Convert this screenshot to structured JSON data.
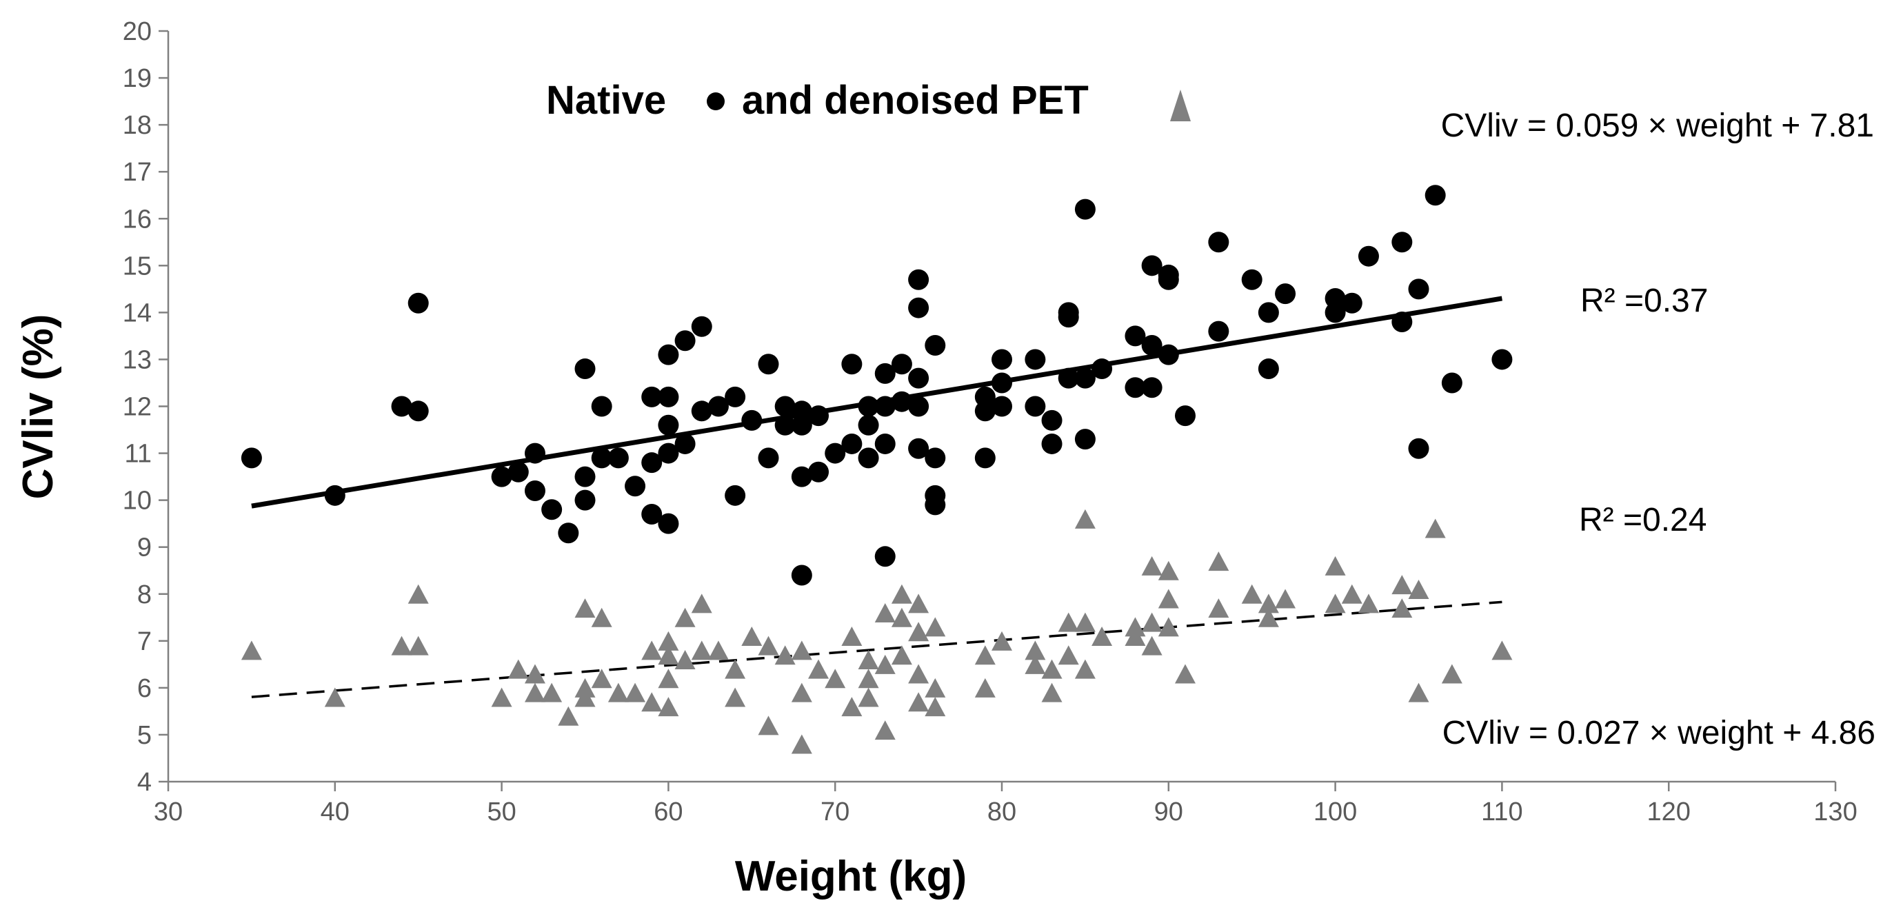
{
  "chart_data": {
    "type": "scatter",
    "title_parts": [
      "Native",
      "and denoised PET"
    ],
    "xlabel": "Weight (kg)",
    "ylabel": "CVliv (%)",
    "xlim": [
      30,
      130
    ],
    "ylim": [
      4,
      20
    ],
    "x_ticks": [
      30,
      40,
      50,
      60,
      70,
      80,
      90,
      100,
      110,
      120,
      130
    ],
    "y_ticks": [
      4,
      5,
      6,
      7,
      8,
      9,
      10,
      11,
      12,
      13,
      14,
      15,
      16,
      17,
      18,
      19,
      20
    ],
    "grid": false,
    "series": [
      {
        "name": "Native",
        "marker": "circle",
        "color": "#000000",
        "points": [
          [
            35,
            10.9
          ],
          [
            40,
            10.1
          ],
          [
            44,
            12.0
          ],
          [
            45,
            11.9
          ],
          [
            45,
            14.2
          ],
          [
            50,
            10.5
          ],
          [
            51,
            10.6
          ],
          [
            52,
            11.0
          ],
          [
            52,
            10.2
          ],
          [
            53,
            9.8
          ],
          [
            54,
            9.3
          ],
          [
            55,
            12.8
          ],
          [
            55,
            10.5
          ],
          [
            55,
            10.0
          ],
          [
            56,
            12.0
          ],
          [
            56,
            10.9
          ],
          [
            57,
            10.9
          ],
          [
            58,
            10.3
          ],
          [
            59,
            12.2
          ],
          [
            59,
            10.8
          ],
          [
            59,
            9.7
          ],
          [
            60,
            13.1
          ],
          [
            60,
            12.2
          ],
          [
            60,
            11.6
          ],
          [
            60,
            11.0
          ],
          [
            60,
            9.5
          ],
          [
            61,
            13.4
          ],
          [
            61,
            11.2
          ],
          [
            62,
            13.7
          ],
          [
            62,
            11.9
          ],
          [
            63,
            12.0
          ],
          [
            64,
            12.2
          ],
          [
            64,
            10.1
          ],
          [
            65,
            11.7
          ],
          [
            66,
            12.9
          ],
          [
            66,
            10.9
          ],
          [
            67,
            12.0
          ],
          [
            67,
            11.6
          ],
          [
            68,
            11.9
          ],
          [
            68,
            11.6
          ],
          [
            68,
            10.5
          ],
          [
            68,
            8.4
          ],
          [
            69,
            11.8
          ],
          [
            69,
            10.6
          ],
          [
            70,
            11.0
          ],
          [
            71,
            12.9
          ],
          [
            71,
            11.2
          ],
          [
            72,
            12.0
          ],
          [
            72,
            11.6
          ],
          [
            72,
            10.9
          ],
          [
            73,
            12.7
          ],
          [
            73,
            12.0
          ],
          [
            73,
            11.2
          ],
          [
            73,
            8.8
          ],
          [
            74,
            12.9
          ],
          [
            74,
            12.1
          ],
          [
            75,
            14.7
          ],
          [
            75,
            14.1
          ],
          [
            75,
            12.6
          ],
          [
            75,
            12.0
          ],
          [
            75,
            11.1
          ],
          [
            76,
            13.3
          ],
          [
            76,
            10.9
          ],
          [
            76,
            10.1
          ],
          [
            76,
            9.9
          ],
          [
            79,
            12.2
          ],
          [
            79,
            11.9
          ],
          [
            79,
            10.9
          ],
          [
            80,
            13.0
          ],
          [
            80,
            12.5
          ],
          [
            80,
            12.0
          ],
          [
            82,
            13.0
          ],
          [
            82,
            12.0
          ],
          [
            83,
            11.7
          ],
          [
            83,
            11.2
          ],
          [
            84,
            14.0
          ],
          [
            84,
            13.9
          ],
          [
            84,
            12.6
          ],
          [
            85,
            16.2
          ],
          [
            85,
            12.6
          ],
          [
            85,
            11.3
          ],
          [
            86,
            12.8
          ],
          [
            88,
            13.5
          ],
          [
            88,
            12.4
          ],
          [
            89,
            15.0
          ],
          [
            89,
            13.3
          ],
          [
            89,
            12.4
          ],
          [
            90,
            14.8
          ],
          [
            90,
            14.7
          ],
          [
            90,
            13.1
          ],
          [
            91,
            11.8
          ],
          [
            93,
            15.5
          ],
          [
            93,
            13.6
          ],
          [
            95,
            14.7
          ],
          [
            96,
            14.0
          ],
          [
            96,
            12.8
          ],
          [
            97,
            14.4
          ],
          [
            100,
            14.3
          ],
          [
            100,
            14.0
          ],
          [
            101,
            14.2
          ],
          [
            102,
            15.2
          ],
          [
            104,
            15.5
          ],
          [
            104,
            13.8
          ],
          [
            105,
            14.5
          ],
          [
            105,
            11.1
          ],
          [
            106,
            16.5
          ],
          [
            107,
            12.5
          ],
          [
            110,
            13.0
          ]
        ],
        "trendline": {
          "style": "solid",
          "x_range": [
            35,
            110
          ],
          "slope": 0.059,
          "intercept": 7.81,
          "r2": 0.37
        }
      },
      {
        "name": "Denoised PET",
        "marker": "triangle",
        "color": "#808080",
        "points": [
          [
            35,
            6.8
          ],
          [
            40,
            5.8
          ],
          [
            44,
            6.9
          ],
          [
            45,
            8.0
          ],
          [
            45,
            6.9
          ],
          [
            50,
            5.8
          ],
          [
            51,
            6.4
          ],
          [
            52,
            6.3
          ],
          [
            52,
            5.9
          ],
          [
            53,
            5.9
          ],
          [
            54,
            5.4
          ],
          [
            55,
            7.7
          ],
          [
            55,
            6.0
          ],
          [
            55,
            5.8
          ],
          [
            56,
            7.5
          ],
          [
            56,
            6.2
          ],
          [
            57,
            5.9
          ],
          [
            58,
            5.9
          ],
          [
            59,
            6.8
          ],
          [
            59,
            5.7
          ],
          [
            60,
            7.0
          ],
          [
            60,
            6.7
          ],
          [
            60,
            6.2
          ],
          [
            60,
            5.6
          ],
          [
            61,
            7.5
          ],
          [
            61,
            6.6
          ],
          [
            62,
            7.8
          ],
          [
            62,
            6.8
          ],
          [
            63,
            6.8
          ],
          [
            64,
            6.4
          ],
          [
            64,
            5.8
          ],
          [
            65,
            7.1
          ],
          [
            66,
            6.9
          ],
          [
            66,
            5.2
          ],
          [
            67,
            6.7
          ],
          [
            68,
            6.8
          ],
          [
            68,
            5.9
          ],
          [
            68,
            4.8
          ],
          [
            69,
            6.4
          ],
          [
            70,
            6.2
          ],
          [
            71,
            7.1
          ],
          [
            71,
            5.6
          ],
          [
            72,
            6.6
          ],
          [
            72,
            6.2
          ],
          [
            72,
            5.8
          ],
          [
            73,
            7.6
          ],
          [
            73,
            6.5
          ],
          [
            73,
            5.1
          ],
          [
            74,
            8.0
          ],
          [
            74,
            7.5
          ],
          [
            74,
            6.7
          ],
          [
            75,
            7.8
          ],
          [
            75,
            7.2
          ],
          [
            75,
            6.3
          ],
          [
            75,
            5.7
          ],
          [
            76,
            7.3
          ],
          [
            76,
            6.0
          ],
          [
            76,
            5.6
          ],
          [
            79,
            6.7
          ],
          [
            79,
            6.0
          ],
          [
            80,
            7.0
          ],
          [
            82,
            6.8
          ],
          [
            82,
            6.5
          ],
          [
            83,
            6.4
          ],
          [
            83,
            5.9
          ],
          [
            84,
            7.4
          ],
          [
            84,
            6.7
          ],
          [
            85,
            9.6
          ],
          [
            85,
            7.4
          ],
          [
            85,
            6.4
          ],
          [
            86,
            7.1
          ],
          [
            88,
            7.3
          ],
          [
            88,
            7.1
          ],
          [
            89,
            8.6
          ],
          [
            89,
            7.4
          ],
          [
            89,
            6.9
          ],
          [
            90,
            8.5
          ],
          [
            90,
            7.9
          ],
          [
            90,
            7.3
          ],
          [
            91,
            6.3
          ],
          [
            93,
            8.7
          ],
          [
            93,
            7.7
          ],
          [
            95,
            8.0
          ],
          [
            96,
            7.8
          ],
          [
            96,
            7.5
          ],
          [
            97,
            7.9
          ],
          [
            100,
            8.6
          ],
          [
            100,
            7.8
          ],
          [
            101,
            8.0
          ],
          [
            102,
            7.8
          ],
          [
            104,
            8.2
          ],
          [
            104,
            7.7
          ],
          [
            105,
            8.1
          ],
          [
            105,
            5.9
          ],
          [
            106,
            9.4
          ],
          [
            107,
            6.3
          ],
          [
            110,
            6.8
          ]
        ],
        "trendline": {
          "style": "dashed",
          "x_range": [
            35,
            110
          ],
          "slope": 0.027,
          "intercept": 4.86,
          "r2": 0.24
        }
      }
    ],
    "annotations": {
      "native_equation": "CVliv = 0.059 × weight + 7.81",
      "native_r2": "R² =0.37",
      "denoised_r2": "R² =0.24",
      "denoised_equation": "CVliv = 0.027 × weight + 4.86"
    }
  }
}
